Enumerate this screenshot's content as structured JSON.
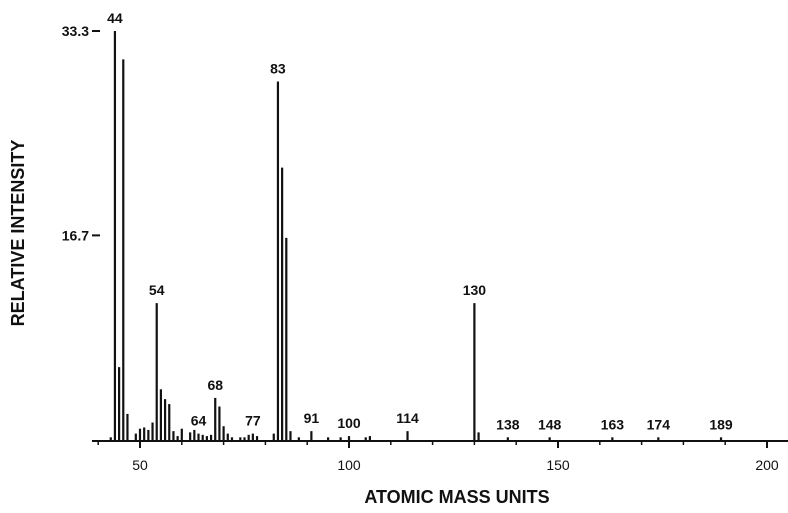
{
  "chart_data": {
    "type": "bar",
    "title": "",
    "xlabel": "ATOMIC MASS UNITS",
    "ylabel": "RELATIVE INTENSITY",
    "xlim": [
      38,
      205
    ],
    "ylim": [
      0,
      33.3
    ],
    "xticks": [
      50,
      100,
      150,
      200
    ],
    "yticks": [
      16.7,
      33.3
    ],
    "grid": false,
    "legend": "none",
    "bar_color": "#111111",
    "peaks": [
      {
        "x": 43,
        "y": 0.3
      },
      {
        "x": 44,
        "y": 33.3,
        "label": "44"
      },
      {
        "x": 45,
        "y": 6.0
      },
      {
        "x": 46,
        "y": 31.0
      },
      {
        "x": 47,
        "y": 2.2
      },
      {
        "x": 49,
        "y": 0.6
      },
      {
        "x": 50,
        "y": 1.0
      },
      {
        "x": 51,
        "y": 1.1
      },
      {
        "x": 52,
        "y": 0.9
      },
      {
        "x": 53,
        "y": 1.5
      },
      {
        "x": 54,
        "y": 11.2,
        "label": "54"
      },
      {
        "x": 55,
        "y": 4.2
      },
      {
        "x": 56,
        "y": 3.4
      },
      {
        "x": 57,
        "y": 3.0
      },
      {
        "x": 58,
        "y": 0.8
      },
      {
        "x": 59,
        "y": 0.4
      },
      {
        "x": 60,
        "y": 1.0
      },
      {
        "x": 62,
        "y": 0.7
      },
      {
        "x": 63,
        "y": 0.9
      },
      {
        "x": 64,
        "y": 0.6,
        "label": "64"
      },
      {
        "x": 65,
        "y": 0.5
      },
      {
        "x": 66,
        "y": 0.4
      },
      {
        "x": 67,
        "y": 0.5
      },
      {
        "x": 68,
        "y": 3.5,
        "label": "68"
      },
      {
        "x": 69,
        "y": 2.8
      },
      {
        "x": 70,
        "y": 1.2
      },
      {
        "x": 71,
        "y": 0.6
      },
      {
        "x": 72,
        "y": 0.3
      },
      {
        "x": 74,
        "y": 0.3
      },
      {
        "x": 75,
        "y": 0.3
      },
      {
        "x": 76,
        "y": 0.5
      },
      {
        "x": 77,
        "y": 0.6,
        "label": "77"
      },
      {
        "x": 78,
        "y": 0.4
      },
      {
        "x": 82,
        "y": 0.6
      },
      {
        "x": 83,
        "y": 29.2,
        "label": "83"
      },
      {
        "x": 84,
        "y": 22.2
      },
      {
        "x": 85,
        "y": 16.5
      },
      {
        "x": 86,
        "y": 0.8
      },
      {
        "x": 88,
        "y": 0.3
      },
      {
        "x": 91,
        "y": 0.8,
        "label": "91"
      },
      {
        "x": 95,
        "y": 0.3
      },
      {
        "x": 98,
        "y": 0.3
      },
      {
        "x": 100,
        "y": 0.4,
        "label": "100"
      },
      {
        "x": 104,
        "y": 0.3
      },
      {
        "x": 105,
        "y": 0.4
      },
      {
        "x": 114,
        "y": 0.8,
        "label": "114"
      },
      {
        "x": 130,
        "y": 11.2,
        "label": "130"
      },
      {
        "x": 131,
        "y": 0.7
      },
      {
        "x": 138,
        "y": 0.3,
        "label": "138"
      },
      {
        "x": 148,
        "y": 0.3,
        "label": "148"
      },
      {
        "x": 163,
        "y": 0.3,
        "label": "163"
      },
      {
        "x": 174,
        "y": 0.3,
        "label": "174"
      },
      {
        "x": 189,
        "y": 0.3,
        "label": "189"
      }
    ]
  }
}
